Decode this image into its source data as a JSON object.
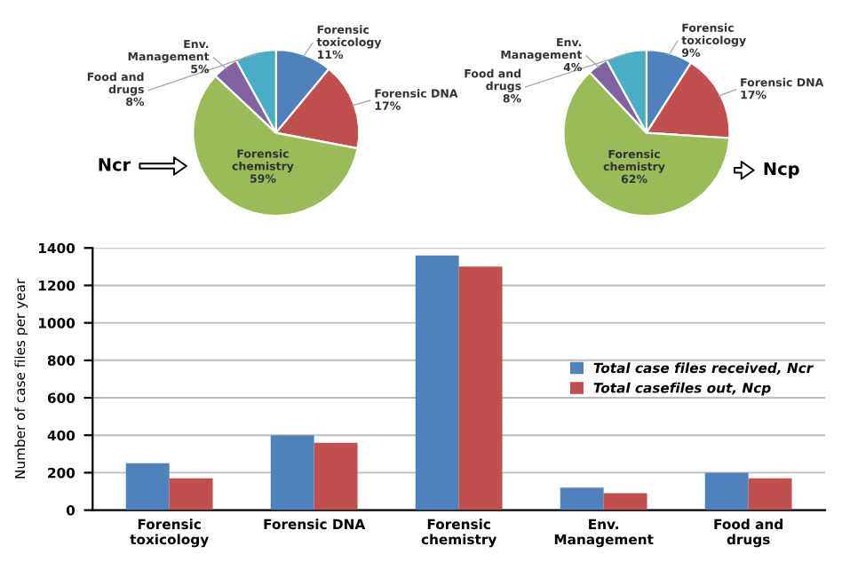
{
  "chart_data": [
    {
      "type": "pie",
      "categories": [
        "Forensic toxicology",
        "Forensic DNA",
        "Forensic chemistry",
        "Env. Management",
        "Food and drugs"
      ],
      "values": [
        11,
        17,
        59,
        5,
        8
      ],
      "colors": [
        "#4f81bd",
        "#c0504d",
        "#9bbb59",
        "#8064a2",
        "#4bacc6"
      ],
      "value_labels": [
        "11%",
        "17%",
        "59%",
        "5%",
        "8%"
      ],
      "annotations": [
        "Ncr"
      ]
    },
    {
      "type": "pie",
      "categories": [
        "Forensic toxicology",
        "Forensic DNA",
        "Forensic chemistry",
        "Env. Management",
        "Food and drugs"
      ],
      "values": [
        9,
        17,
        62,
        4,
        8
      ],
      "colors": [
        "#4f81bd",
        "#c0504d",
        "#9bbb59",
        "#8064a2",
        "#4bacc6"
      ],
      "value_labels": [
        "9%",
        "17%",
        "62%",
        "4%",
        "8%"
      ],
      "annotations": [
        "Ncp"
      ]
    },
    {
      "type": "bar",
      "categories": [
        "Forensic toxicology",
        "Forensic DNA",
        "Forensic chemistry",
        "Env. Management",
        "Food and drugs"
      ],
      "series": [
        {
          "name": "Total case files received, Ncr",
          "color": "#4f81bd",
          "values": [
            250,
            400,
            1360,
            120,
            200
          ]
        },
        {
          "name": "Total casefiles out, Ncp",
          "color": "#c0504d",
          "values": [
            170,
            360,
            1300,
            90,
            170
          ]
        }
      ],
      "ylabel": "Number of case files per year",
      "ylim": [
        0,
        1400
      ],
      "yticks": [
        0,
        200,
        400,
        600,
        800,
        1000,
        1200,
        1400
      ],
      "grid": "y",
      "legend": "right"
    }
  ]
}
